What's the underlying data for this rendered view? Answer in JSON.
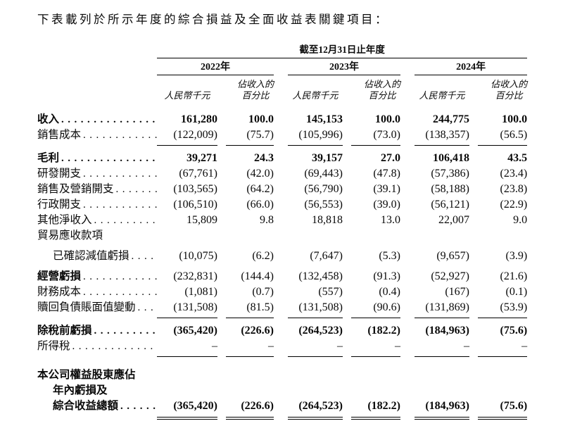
{
  "page": {
    "title": "下表載列於所示年度的綜合損益及全面收益表關鍵項目："
  },
  "table": {
    "period_header": "截至12月31日止年度",
    "years": [
      "2022年",
      "2023年",
      "2024年"
    ],
    "unit_label": "人民幣千元",
    "pct_label_line1": "佔收入的",
    "pct_label_line2": "百分比",
    "rows": [
      {
        "label": "收入",
        "leader": true,
        "bold": true,
        "indent": false,
        "bold_label_only": false,
        "space_before": "none",
        "rule_below": "none",
        "values": [
          "161,280",
          "100.0",
          "145,153",
          "100.0",
          "244,775",
          "100.0"
        ]
      },
      {
        "label": "銷售成本",
        "leader": true,
        "bold": false,
        "indent": false,
        "bold_label_only": false,
        "space_before": "none",
        "rule_below": "single",
        "values": [
          "(122,009)",
          "(75.7)",
          "(105,996)",
          "(73.0)",
          "(138,357)",
          "(56.5)"
        ]
      },
      {
        "label": "毛利",
        "leader": true,
        "bold": true,
        "indent": false,
        "bold_label_only": false,
        "space_before": "small",
        "rule_below": "none",
        "values": [
          "39,271",
          "24.3",
          "39,157",
          "27.0",
          "106,418",
          "43.5"
        ]
      },
      {
        "label": "研發開支",
        "leader": true,
        "bold": false,
        "indent": false,
        "bold_label_only": false,
        "space_before": "none",
        "rule_below": "none",
        "values": [
          "(67,761)",
          "(42.0)",
          "(69,443)",
          "(47.8)",
          "(57,386)",
          "(23.4)"
        ]
      },
      {
        "label": "銷售及營銷開支",
        "leader": true,
        "bold": false,
        "indent": false,
        "bold_label_only": false,
        "space_before": "none",
        "rule_below": "none",
        "values": [
          "(103,565)",
          "(64.2)",
          "(56,790)",
          "(39.1)",
          "(58,188)",
          "(23.8)"
        ]
      },
      {
        "label": "行政開支",
        "leader": true,
        "bold": false,
        "indent": false,
        "bold_label_only": false,
        "space_before": "none",
        "rule_below": "none",
        "values": [
          "(106,510)",
          "(66.0)",
          "(56,553)",
          "(39.0)",
          "(56,121)",
          "(22.9)"
        ]
      },
      {
        "label": "其他淨收入",
        "leader": true,
        "bold": false,
        "indent": false,
        "bold_label_only": false,
        "space_before": "none",
        "rule_below": "none",
        "values": [
          "15,809",
          "9.8",
          "18,818",
          "13.0",
          "22,007",
          "9.0"
        ]
      },
      {
        "label": "貿易應收款項",
        "leader": false,
        "bold": false,
        "indent": false,
        "bold_label_only": false,
        "space_before": "none",
        "rule_below": "none",
        "values": [
          "",
          "",
          "",
          "",
          "",
          ""
        ]
      },
      {
        "label": "已確認減值虧損",
        "leader": true,
        "bold": false,
        "indent": true,
        "bold_label_only": false,
        "space_before": "small",
        "rule_below": "none",
        "values": [
          "(10,075)",
          "(6.2)",
          "(7,647)",
          "(5.3)",
          "(9,657)",
          "(3.9)"
        ]
      },
      {
        "label": "經營虧損",
        "leader": true,
        "bold": false,
        "indent": false,
        "bold_label_only": true,
        "space_before": "small",
        "rule_below": "none",
        "values": [
          "(232,831)",
          "(144.4)",
          "(132,458)",
          "(91.3)",
          "(52,927)",
          "(21.6)"
        ]
      },
      {
        "label": "財務成本",
        "leader": true,
        "bold": false,
        "indent": false,
        "bold_label_only": false,
        "space_before": "none",
        "rule_below": "none",
        "values": [
          "(1,081)",
          "(0.7)",
          "(557)",
          "(0.4)",
          "(167)",
          "(0.1)"
        ]
      },
      {
        "label": "贖回負債賬面值變動",
        "leader": true,
        "bold": false,
        "indent": false,
        "bold_label_only": false,
        "space_before": "none",
        "rule_below": "single",
        "values": [
          "(131,508)",
          "(81.5)",
          "(131,508)",
          "(90.6)",
          "(131,869)",
          "(53.9)"
        ]
      },
      {
        "label": "除稅前虧損",
        "leader": true,
        "bold": true,
        "indent": false,
        "bold_label_only": false,
        "space_before": "small",
        "rule_below": "none",
        "values": [
          "(365,420)",
          "(226.6)",
          "(264,523)",
          "(182.2)",
          "(184,963)",
          "(75.6)"
        ]
      },
      {
        "label": "所得稅",
        "leader": true,
        "bold": false,
        "indent": false,
        "bold_label_only": false,
        "space_before": "none",
        "rule_below": "single",
        "values": [
          "–",
          "–",
          "–",
          "–",
          "–",
          "–"
        ]
      },
      {
        "label": "本公司權益股東應佔",
        "leader": false,
        "bold": true,
        "indent": false,
        "bold_label_only": false,
        "space_before": "large",
        "rule_below": "none",
        "values": [
          "",
          "",
          "",
          "",
          "",
          ""
        ]
      },
      {
        "label": "年內虧損及",
        "leader": false,
        "bold": true,
        "indent": true,
        "bold_label_only": false,
        "space_before": "none",
        "rule_below": "none",
        "values": [
          "",
          "",
          "",
          "",
          "",
          ""
        ]
      },
      {
        "label": "綜合收益總額",
        "leader": true,
        "bold": true,
        "indent": true,
        "bold_label_only": false,
        "space_before": "none",
        "rule_below": "double",
        "values": [
          "(365,420)",
          "(226.6)",
          "(264,523)",
          "(182.2)",
          "(184,963)",
          "(75.6)"
        ]
      }
    ]
  }
}
